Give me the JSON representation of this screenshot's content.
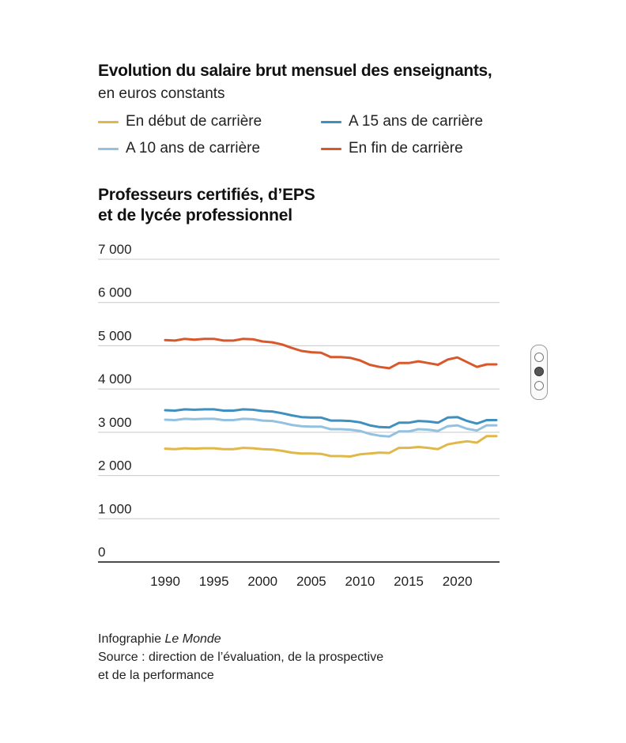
{
  "title": "Evolution du salaire brut mensuel des enseignants,",
  "subtitle": "en euros constants",
  "legend": [
    {
      "label": "En début de carrière",
      "color": "#e0b84a"
    },
    {
      "label": "A 15 ans de carrière",
      "color": "#3f8fbf"
    },
    {
      "label": "A 10 ans de carrière",
      "color": "#92c2df"
    },
    {
      "label": "En fin de carrière",
      "color": "#d9582b"
    }
  ],
  "panel_title_line1": "Professeurs certifiés, d’EPS",
  "panel_title_line2": "et de lycée professionnel",
  "footer": {
    "credit_prefix": "Infographie",
    "credit_name": "Le Monde",
    "source_line1": "Source : direction de l’évaluation, de la prospective",
    "source_line2": "et de la performance"
  },
  "chart_data": {
    "type": "line",
    "title": "Professeurs certifiés, d’EPS et de lycée professionnel",
    "xlabel": "",
    "ylabel": "",
    "xlim": [
      1990,
      2024
    ],
    "ylim": [
      0,
      7000
    ],
    "y_ticks": [
      0,
      1000,
      2000,
      3000,
      4000,
      5000,
      6000,
      7000
    ],
    "y_tick_labels": [
      "0",
      "1 000",
      "2 000",
      "3 000",
      "4 000",
      "5 000",
      "6 000",
      "7 000"
    ],
    "x_ticks": [
      1990,
      1995,
      2000,
      2005,
      2010,
      2015,
      2020
    ],
    "x_tick_labels": [
      "1990",
      "1995",
      "2000",
      "2005",
      "2010",
      "2015",
      "2020"
    ],
    "grid": "horizontal",
    "legend_position": "top",
    "x": [
      1990,
      1991,
      1992,
      1993,
      1994,
      1995,
      1996,
      1997,
      1998,
      1999,
      2000,
      2001,
      2002,
      2003,
      2004,
      2005,
      2006,
      2007,
      2008,
      2009,
      2010,
      2011,
      2012,
      2013,
      2014,
      2015,
      2016,
      2017,
      2018,
      2019,
      2020,
      2021,
      2022,
      2023,
      2024
    ],
    "series": [
      {
        "name": "En fin de carrière",
        "color": "#d9582b",
        "values": [
          5130,
          5120,
          5160,
          5140,
          5160,
          5160,
          5120,
          5120,
          5160,
          5150,
          5100,
          5080,
          5030,
          4950,
          4880,
          4850,
          4840,
          4740,
          4740,
          4720,
          4660,
          4560,
          4510,
          4480,
          4600,
          4600,
          4640,
          4600,
          4560,
          4680,
          4730,
          4620,
          4510,
          4570,
          4570
        ]
      },
      {
        "name": "A 15 ans de carrière",
        "color": "#3f8fbf",
        "values": [
          3510,
          3500,
          3530,
          3520,
          3530,
          3530,
          3500,
          3500,
          3530,
          3520,
          3490,
          3480,
          3440,
          3390,
          3350,
          3340,
          3340,
          3270,
          3270,
          3260,
          3230,
          3160,
          3120,
          3110,
          3220,
          3220,
          3260,
          3250,
          3220,
          3340,
          3350,
          3260,
          3200,
          3280,
          3280
        ]
      },
      {
        "name": "A 10 ans de carrière",
        "color": "#92c2df",
        "values": [
          3290,
          3280,
          3310,
          3300,
          3310,
          3310,
          3280,
          3280,
          3310,
          3300,
          3270,
          3260,
          3220,
          3170,
          3140,
          3130,
          3130,
          3070,
          3070,
          3060,
          3030,
          2960,
          2920,
          2900,
          3020,
          3020,
          3070,
          3060,
          3030,
          3140,
          3160,
          3080,
          3040,
          3160,
          3160
        ]
      },
      {
        "name": "En début de carrière",
        "color": "#e0b84a",
        "values": [
          2620,
          2610,
          2630,
          2620,
          2630,
          2630,
          2610,
          2610,
          2640,
          2630,
          2610,
          2600,
          2570,
          2530,
          2510,
          2510,
          2500,
          2450,
          2450,
          2440,
          2490,
          2510,
          2530,
          2520,
          2640,
          2640,
          2660,
          2640,
          2610,
          2720,
          2760,
          2790,
          2760,
          2910,
          2910
        ]
      }
    ]
  }
}
